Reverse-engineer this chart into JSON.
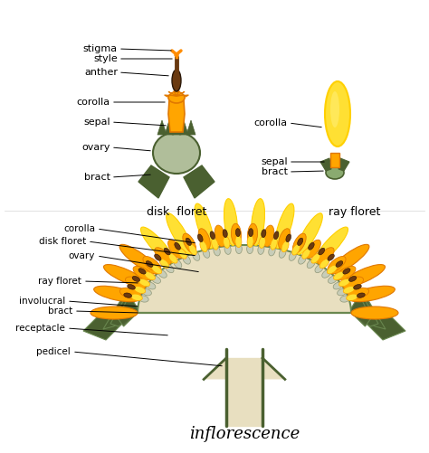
{
  "bg_color": "#ffffff",
  "title": "inflorescence",
  "disk_floret_label": "disk  floret",
  "ray_floret_label": "ray floret",
  "colors": {
    "yellow_bright": "#FFE033",
    "yellow_mid": "#FFD000",
    "yellow_orange": "#FFA500",
    "orange_dark": "#E07800",
    "orange": "#FF8C00",
    "green_dark": "#4a6030",
    "green_med": "#6a8850",
    "green_gray": "#8aaa70",
    "green_light": "#aabb88",
    "tan": "#d8ceaa",
    "tan_light": "#e8dfc0",
    "tan_mid": "#c8bc98",
    "brown": "#5a3a1a",
    "anther_brown": "#6a3a10",
    "gray_green": "#a8b898",
    "gray_light": "#c8cdb8",
    "white": "#ffffff",
    "black": "#111111"
  }
}
